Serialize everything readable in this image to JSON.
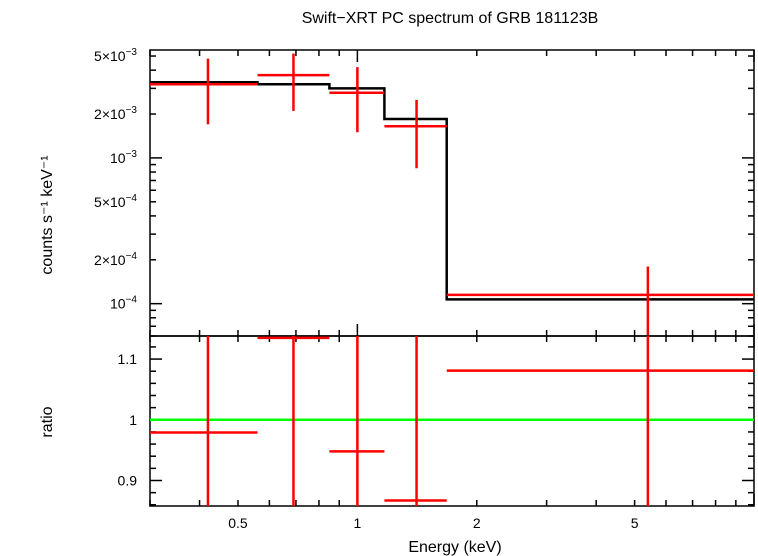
{
  "chart_data": [
    {
      "type": "line",
      "panel": "spectrum",
      "title": "Swift−XRT PC spectrum of GRB 181123B",
      "ylabel": "counts s⁻¹ keV⁻¹",
      "xlabel": "",
      "x_scale": "log",
      "y_scale": "log",
      "xlim": [
        0.3,
        10
      ],
      "ylim": [
        6e-05,
        0.0055
      ],
      "y_ticks": [
        {
          "value": 0.005,
          "label_base": "5×10",
          "label_exp": "−3"
        },
        {
          "value": 0.002,
          "label_base": "2×10",
          "label_exp": "−3"
        },
        {
          "value": 0.001,
          "label_base": "10",
          "label_exp": "−3"
        },
        {
          "value": 0.0005,
          "label_base": "5×10",
          "label_exp": "−4"
        },
        {
          "value": 0.0002,
          "label_base": "2×10",
          "label_exp": "−4"
        },
        {
          "value": 0.0001,
          "label_base": "10",
          "label_exp": "−4"
        }
      ],
      "data_points": [
        {
          "x": 0.42,
          "x_lo": 0.3,
          "x_hi": 0.56,
          "y": 0.0032,
          "y_lo": 0.0017,
          "y_hi": 0.0048
        },
        {
          "x": 0.69,
          "x_lo": 0.56,
          "x_hi": 0.85,
          "y": 0.0037,
          "y_lo": 0.0021,
          "y_hi": 0.0052
        },
        {
          "x": 1.0,
          "x_lo": 0.85,
          "x_hi": 1.17,
          "y": 0.0028,
          "y_lo": 0.0015,
          "y_hi": 0.0042
        },
        {
          "x": 1.41,
          "x_lo": 1.17,
          "x_hi": 1.68,
          "y": 0.00165,
          "y_lo": 0.00085,
          "y_hi": 0.0025
        },
        {
          "x": 5.4,
          "x_lo": 1.68,
          "x_hi": 10.0,
          "y": 0.000115,
          "y_lo": 6e-05,
          "y_hi": 0.00018
        }
      ],
      "model_steps": [
        {
          "x_lo": 0.3,
          "x_hi": 0.56,
          "y": 0.0033
        },
        {
          "x_lo": 0.56,
          "x_hi": 0.85,
          "y": 0.0032
        },
        {
          "x_lo": 0.85,
          "x_hi": 1.17,
          "y": 0.003
        },
        {
          "x_lo": 1.17,
          "x_hi": 1.68,
          "y": 0.00185
        },
        {
          "x_lo": 1.68,
          "x_hi": 10.0,
          "y": 0.000107
        }
      ],
      "colors": {
        "data": "#ff0000",
        "model": "#000000"
      }
    },
    {
      "type": "line",
      "panel": "ratio",
      "title": "",
      "ylabel": "ratio",
      "xlabel": "Energy (keV)",
      "x_scale": "log",
      "y_scale": "linear",
      "xlim": [
        0.3,
        10
      ],
      "ylim": [
        0.858,
        1.138
      ],
      "y_ticks": [
        {
          "value": 1.1,
          "label": "1.1"
        },
        {
          "value": 1.0,
          "label": "1"
        },
        {
          "value": 0.9,
          "label": "0.9"
        }
      ],
      "x_ticks": [
        {
          "value": 0.5,
          "label": "0.5"
        },
        {
          "value": 1,
          "label": "1"
        },
        {
          "value": 2,
          "label": "2"
        },
        {
          "value": 5,
          "label": "5"
        }
      ],
      "reference_line": {
        "y": 1.0,
        "color": "#00ff00"
      },
      "data_points": [
        {
          "x": 0.42,
          "x_lo": 0.3,
          "x_hi": 0.56,
          "y": 0.979,
          "y_lo": 0.858,
          "y_hi": 1.138
        },
        {
          "x": 0.69,
          "x_lo": 0.56,
          "x_hi": 0.85,
          "y": 1.135,
          "y_lo": 0.858,
          "y_hi": 1.138
        },
        {
          "x": 1.0,
          "x_lo": 0.85,
          "x_hi": 1.17,
          "y": 0.948,
          "y_lo": 0.858,
          "y_hi": 1.138
        },
        {
          "x": 1.41,
          "x_lo": 1.17,
          "x_hi": 1.68,
          "y": 0.867,
          "y_lo": 0.858,
          "y_hi": 1.138
        },
        {
          "x": 5.4,
          "x_lo": 1.68,
          "x_hi": 10.0,
          "y": 1.081,
          "y_lo": 0.858,
          "y_hi": 1.138
        }
      ],
      "colors": {
        "data": "#ff0000"
      }
    }
  ]
}
